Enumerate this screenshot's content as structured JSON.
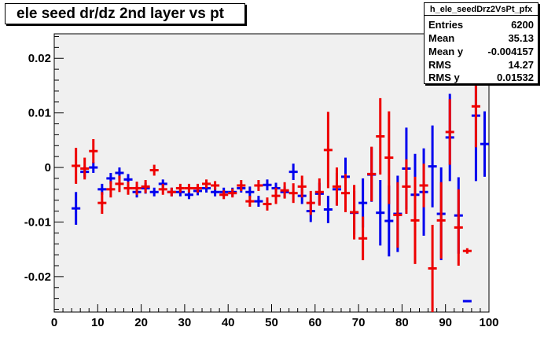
{
  "chart_data": {
    "type": "scatter",
    "title": "ele seed dr/dz 2nd layer vs pt",
    "xlabel": "",
    "ylabel": "",
    "xlim": [
      0,
      100
    ],
    "ylim": [
      -0.0265,
      0.0245
    ],
    "x_ticks": [
      0,
      10,
      20,
      30,
      40,
      50,
      60,
      70,
      80,
      90,
      100
    ],
    "x_tick_labels": [
      "0",
      "10",
      "20",
      "30",
      "40",
      "50",
      "60",
      "70",
      "80",
      "90",
      "100"
    ],
    "y_ticks": [
      -0.02,
      -0.01,
      0,
      0.01,
      0.02
    ],
    "y_tick_labels": [
      "-0.02",
      "-0.01",
      "0",
      "0.01",
      "0.02"
    ],
    "grid": false,
    "background": "#f0f0f0",
    "series": [
      {
        "color": "#0000ee",
        "points": [
          {
            "x": 5,
            "y": -0.0075,
            "err": 0.003
          },
          {
            "x": 7,
            "y": -0.0008,
            "err": 0.001
          },
          {
            "x": 9,
            "y": 0.0,
            "err": 0.001
          },
          {
            "x": 11,
            "y": -0.004,
            "err": 0.001
          },
          {
            "x": 13,
            "y": -0.002,
            "err": 0.001
          },
          {
            "x": 15,
            "y": -0.001,
            "err": 0.001
          },
          {
            "x": 17,
            "y": -0.0022,
            "err": 0.001
          },
          {
            "x": 19,
            "y": -0.0045,
            "err": 0.001
          },
          {
            "x": 21,
            "y": -0.0038,
            "err": 0.001
          },
          {
            "x": 23,
            "y": -0.0045,
            "err": 0.0008
          },
          {
            "x": 25,
            "y": -0.003,
            "err": 0.0008
          },
          {
            "x": 27,
            "y": -0.0045,
            "err": 0.0008
          },
          {
            "x": 29,
            "y": -0.0045,
            "err": 0.0008
          },
          {
            "x": 31,
            "y": -0.005,
            "err": 0.0008
          },
          {
            "x": 33,
            "y": -0.0043,
            "err": 0.0008
          },
          {
            "x": 35,
            "y": -0.0038,
            "err": 0.0008
          },
          {
            "x": 37,
            "y": -0.0045,
            "err": 0.0008
          },
          {
            "x": 39,
            "y": -0.0045,
            "err": 0.0008
          },
          {
            "x": 41,
            "y": -0.0045,
            "err": 0.0008
          },
          {
            "x": 43,
            "y": -0.0038,
            "err": 0.0008
          },
          {
            "x": 45,
            "y": -0.0045,
            "err": 0.001
          },
          {
            "x": 47,
            "y": -0.0062,
            "err": 0.001
          },
          {
            "x": 49,
            "y": -0.0032,
            "err": 0.001
          },
          {
            "x": 51,
            "y": -0.0038,
            "err": 0.001
          },
          {
            "x": 53,
            "y": -0.0045,
            "err": 0.001
          },
          {
            "x": 55,
            "y": -0.0008,
            "err": 0.0015
          },
          {
            "x": 57,
            "y": -0.0052,
            "err": 0.0015
          },
          {
            "x": 59,
            "y": -0.008,
            "err": 0.002
          },
          {
            "x": 61,
            "y": -0.0048,
            "err": 0.002
          },
          {
            "x": 63,
            "y": -0.0077,
            "err": 0.0025
          },
          {
            "x": 65,
            "y": -0.004,
            "err": 0.003
          },
          {
            "x": 67,
            "y": -0.0017,
            "err": 0.0035
          },
          {
            "x": 69,
            "y": -0.0083,
            "err": 0.004
          },
          {
            "x": 71,
            "y": -0.0065,
            "err": 0.0045
          },
          {
            "x": 73,
            "y": -0.0013,
            "err": 0.005
          },
          {
            "x": 75,
            "y": -0.0083,
            "err": 0.006
          },
          {
            "x": 77,
            "y": -0.0098,
            "err": 0.0065
          },
          {
            "x": 79,
            "y": -0.0085,
            "err": 0.007
          },
          {
            "x": 81,
            "y": -0.0002,
            "err": 0.0075
          },
          {
            "x": 83,
            "y": -0.005,
            "err": 0.0075
          },
          {
            "x": 85,
            "y": -0.0045,
            "err": 0.008
          },
          {
            "x": 87,
            "y": 0.0002,
            "err": 0.0075
          },
          {
            "x": 89,
            "y": -0.0085,
            "err": 0.0085
          },
          {
            "x": 91,
            "y": 0.0055,
            "err": 0.008
          },
          {
            "x": 93,
            "y": -0.0088,
            "err": 0.007
          },
          {
            "x": 95,
            "y": -0.0245,
            "err": 0.0
          },
          {
            "x": 97,
            "y": 0.0095,
            "err": 0.012
          },
          {
            "x": 99,
            "y": 0.0043,
            "err": 0.006
          }
        ]
      },
      {
        "color": "#ee0000",
        "points": [
          {
            "x": 5,
            "y": 0.0003,
            "err": 0.0033
          },
          {
            "x": 7,
            "y": -0.0002,
            "err": 0.002
          },
          {
            "x": 9,
            "y": 0.003,
            "err": 0.0022
          },
          {
            "x": 11,
            "y": -0.0065,
            "err": 0.002
          },
          {
            "x": 13,
            "y": -0.004,
            "err": 0.0015
          },
          {
            "x": 15,
            "y": -0.003,
            "err": 0.0015
          },
          {
            "x": 17,
            "y": -0.0038,
            "err": 0.0012
          },
          {
            "x": 19,
            "y": -0.0038,
            "err": 0.0012
          },
          {
            "x": 21,
            "y": -0.0035,
            "err": 0.0012
          },
          {
            "x": 23,
            "y": -0.0005,
            "err": 0.001
          },
          {
            "x": 25,
            "y": -0.004,
            "err": 0.001
          },
          {
            "x": 27,
            "y": -0.0045,
            "err": 0.0008
          },
          {
            "x": 29,
            "y": -0.0038,
            "err": 0.0008
          },
          {
            "x": 31,
            "y": -0.0038,
            "err": 0.0008
          },
          {
            "x": 33,
            "y": -0.0038,
            "err": 0.0008
          },
          {
            "x": 35,
            "y": -0.003,
            "err": 0.0008
          },
          {
            "x": 37,
            "y": -0.0033,
            "err": 0.0008
          },
          {
            "x": 39,
            "y": -0.005,
            "err": 0.0008
          },
          {
            "x": 41,
            "y": -0.0047,
            "err": 0.0008
          },
          {
            "x": 43,
            "y": -0.0033,
            "err": 0.001
          },
          {
            "x": 45,
            "y": -0.0062,
            "err": 0.001
          },
          {
            "x": 47,
            "y": -0.0033,
            "err": 0.001
          },
          {
            "x": 49,
            "y": -0.0067,
            "err": 0.0012
          },
          {
            "x": 51,
            "y": -0.0052,
            "err": 0.0015
          },
          {
            "x": 53,
            "y": -0.0042,
            "err": 0.0015
          },
          {
            "x": 55,
            "y": -0.0047,
            "err": 0.0018
          },
          {
            "x": 57,
            "y": -0.0035,
            "err": 0.002
          },
          {
            "x": 59,
            "y": -0.0065,
            "err": 0.0022
          },
          {
            "x": 61,
            "y": -0.0045,
            "err": 0.0025
          },
          {
            "x": 63,
            "y": 0.0032,
            "err": 0.007
          },
          {
            "x": 65,
            "y": -0.0035,
            "err": 0.0035
          },
          {
            "x": 67,
            "y": -0.0047,
            "err": 0.0035
          },
          {
            "x": 69,
            "y": -0.0082,
            "err": 0.005
          },
          {
            "x": 71,
            "y": -0.013,
            "err": 0.004
          },
          {
            "x": 73,
            "y": -0.0012,
            "err": 0.005
          },
          {
            "x": 75,
            "y": 0.0057,
            "err": 0.007
          },
          {
            "x": 77,
            "y": 0.0018,
            "err": 0.0085
          },
          {
            "x": 79,
            "y": -0.0087,
            "err": 0.006
          },
          {
            "x": 81,
            "y": -0.0035,
            "err": 0.005
          },
          {
            "x": 83,
            "y": -0.0097,
            "err": 0.008
          },
          {
            "x": 85,
            "y": -0.0033,
            "err": 0.004
          },
          {
            "x": 87,
            "y": -0.0185,
            "err": 0.008
          },
          {
            "x": 89,
            "y": -0.0097,
            "err": 0.007
          },
          {
            "x": 91,
            "y": 0.0065,
            "err": 0.006
          },
          {
            "x": 93,
            "y": -0.011,
            "err": 0.007
          },
          {
            "x": 95,
            "y": -0.0153,
            "err": 0.0005
          },
          {
            "x": 97,
            "y": 0.0112,
            "err": 0.0075
          }
        ]
      }
    ]
  },
  "stats": {
    "name": "h_ele_seedDrz2VsPt_pfx",
    "rows": [
      {
        "label": "Entries",
        "value": "6200"
      },
      {
        "label": "Mean",
        "value": "35.13"
      },
      {
        "label": "Mean y",
        "value": "-0.004157"
      },
      {
        "label": "RMS",
        "value": "14.27"
      },
      {
        "label": "RMS y",
        "value": "0.01532"
      }
    ]
  }
}
